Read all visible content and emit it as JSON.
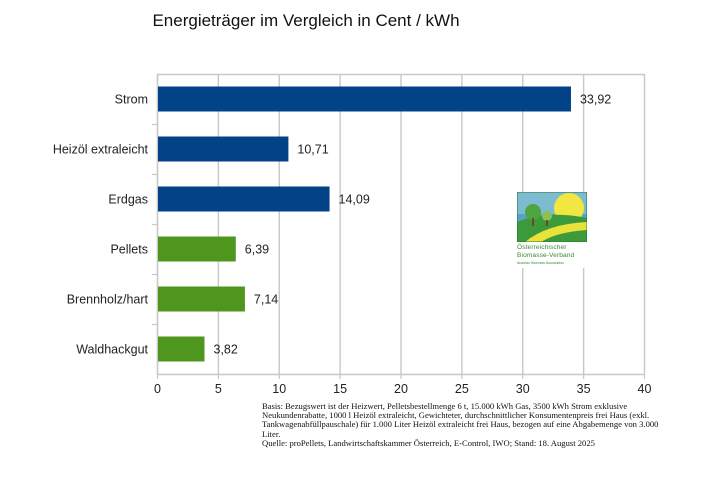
{
  "chart_data": {
    "type": "bar",
    "orientation": "horizontal",
    "title": "Energieträger im Vergleich in Cent / kWh",
    "xlabel": "",
    "ylabel": "",
    "xlim": [
      0,
      40
    ],
    "x_ticks": [
      "0",
      "5",
      "10",
      "15",
      "20",
      "25",
      "30",
      "35",
      "40"
    ],
    "x_tick_values": [
      0,
      5,
      10,
      15,
      20,
      25,
      30,
      35,
      40
    ],
    "grid": true,
    "legend": "none",
    "categories": [
      "Strom",
      "Heizöl extraleicht",
      "Erdgas",
      "Pellets",
      "Brennholz/hart",
      "Waldhackgut"
    ],
    "values": [
      33.92,
      10.71,
      14.09,
      6.39,
      7.14,
      3.82
    ],
    "value_labels": [
      "33,92",
      "10,71",
      "14,09",
      "6,39",
      "7,14",
      "3,82"
    ],
    "bar_colors": [
      "#024388",
      "#024388",
      "#024388",
      "#4f961e",
      "#4f961e",
      "#4f961e"
    ]
  },
  "colors": {
    "fossil": "#024388",
    "biomass": "#4f961e",
    "grid": "#c8c8c8"
  },
  "footnote": {
    "lines": [
      "Basis: Bezugswert ist der Heizwert, Pelletsbestellmenge 6 t, 15.000 kWh Gas, 3500 kWh Strom exklusive Neukundenrabatte, 1000 l Heizöl extraleicht, Gewichteter, durchschnittlicher Konsumentenpreis frei Haus (exkl. Tankwagenabfüllpauschale) für 1.000 Liter Heizöl extraleicht frei Haus, bezogen auf eine Abgabemenge von 3.000 Liter.",
      "Quelle: proPellets, Landwirtschaftskammer Österreich, E-Control, IWO; Stand: 18. August 2025"
    ]
  },
  "logo": {
    "line1": "Österreichischer",
    "line2": "Biomasse-Verband",
    "line3": "Austrian Biomass Association"
  }
}
